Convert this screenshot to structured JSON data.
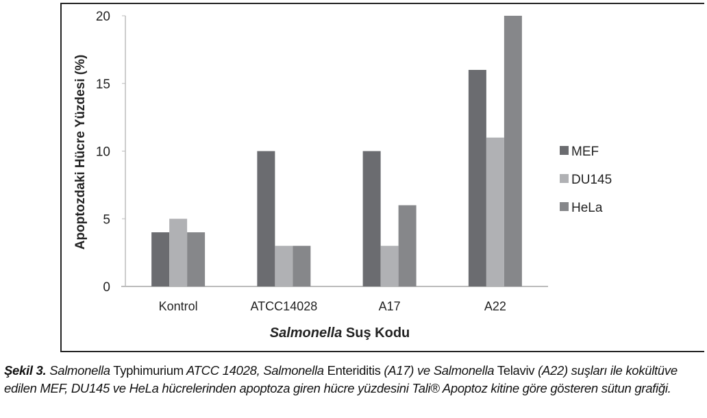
{
  "chart_data": {
    "type": "bar",
    "categories": [
      "Kontrol",
      "ATCC14028",
      "A17",
      "A22"
    ],
    "series": [
      {
        "name": "MEF",
        "values": [
          4,
          10,
          10,
          16
        ],
        "color": "#6b6c70"
      },
      {
        "name": "DU145",
        "values": [
          5,
          3,
          3,
          11
        ],
        "color": "#b0b1b4"
      },
      {
        "name": "HeLa",
        "values": [
          4,
          3,
          6,
          20
        ],
        "color": "#86878a"
      }
    ],
    "ylabel": "Apoptozdaki Hücre Yüzdesi (%)",
    "xlabel_italic": "Salmonella",
    "xlabel_rest": " Suş Kodu",
    "ylim": [
      0,
      20
    ],
    "yticks": [
      0,
      5,
      10,
      15,
      20
    ],
    "grid": false,
    "legend": "right"
  },
  "caption": {
    "label": "Şekil 3.",
    "parts": [
      {
        "t": " Salmonella",
        "i": true
      },
      {
        "t": " Typhimurium",
        "i": false
      },
      {
        "t": " ATCC 14028, Salmonella",
        "i": true
      },
      {
        "t": " Enteriditis",
        "i": false
      },
      {
        "t": " (A17) ve Salmonella",
        "i": true
      },
      {
        "t": " Telaviv",
        "i": false
      },
      {
        "t": "  (A22) suşları ile kokültüve edilen MEF, DU145 ve HeLa hücrelerinden apoptoza giren hücre yüzdesini Tali® Apoptoz kitine göre gösteren sütun grafiği.",
        "i": true
      }
    ]
  }
}
